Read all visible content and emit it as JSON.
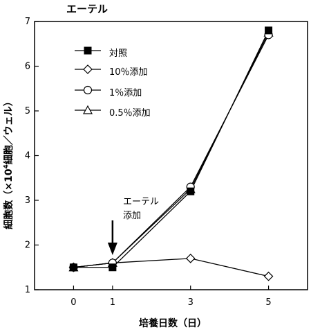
{
  "chart_data": {
    "type": "line",
    "title": "エーテル",
    "xlabel": "培養日数（日）",
    "ylabel": {
      "prefix": "細胞数（×10",
      "exponent": "4",
      "suffix": "細胞／ウェル）"
    },
    "x": [
      0,
      1,
      3,
      5
    ],
    "x_tick_labels": [
      "0",
      "1",
      "3",
      "5"
    ],
    "xlim": [
      -1,
      6
    ],
    "ylim": [
      1,
      7
    ],
    "y_ticks": [
      1,
      2,
      3,
      4,
      5,
      6,
      7
    ],
    "grid": false,
    "legend_position": "upper-left",
    "series": [
      {
        "name": "対照",
        "marker": "square-filled",
        "values": [
          1.5,
          1.5,
          3.2,
          6.8
        ]
      },
      {
        "name": "10％添加",
        "marker": "diamond-open",
        "values": [
          1.5,
          1.6,
          1.7,
          1.3
        ]
      },
      {
        "name": "1％添加",
        "marker": "circle-open",
        "values": [
          1.5,
          1.6,
          3.3,
          6.7
        ]
      },
      {
        "name": "0.5％添加",
        "marker": "triangle-open",
        "values": [
          1.5,
          1.6,
          3.25,
          6.75
        ]
      }
    ],
    "annotations": [
      {
        "line1": "エーテル",
        "line2": "添加",
        "at_x": 1
      }
    ]
  }
}
